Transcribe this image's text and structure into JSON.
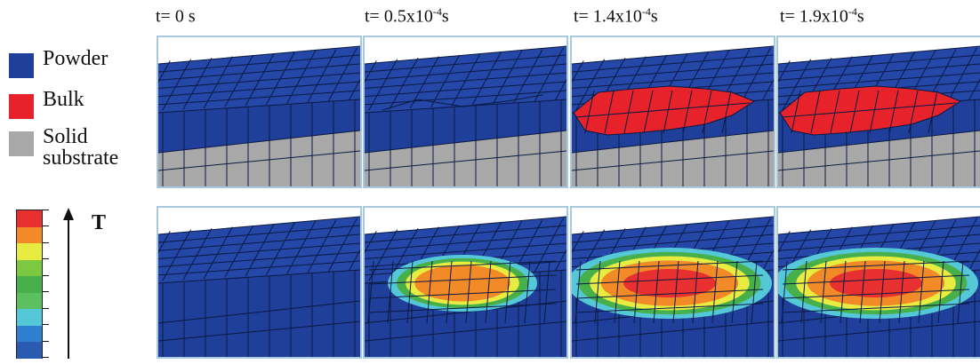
{
  "time_labels": [
    {
      "prefix": "t= 0 s",
      "exp": "",
      "suffix": ""
    },
    {
      "prefix": "t= 0.5x10",
      "exp": "-4",
      "suffix": "s"
    },
    {
      "prefix": "t= 1.4x10",
      "exp": "-4",
      "suffix": "s"
    },
    {
      "prefix": "t= 1.9x10",
      "exp": "-4",
      "suffix": "s"
    }
  ],
  "legend": [
    {
      "label_line1": "Powder",
      "label_line2": "",
      "color": "#1f3f9a"
    },
    {
      "label_line1": "Bulk",
      "label_line2": "",
      "color": "#e8222a"
    },
    {
      "label_line1": "Solid",
      "label_line2": "substrate",
      "color": "#a8a8a8"
    }
  ],
  "temperature_axis_label": "T",
  "colorbar_colors": [
    "#2a5bb0",
    "#2f7fd0",
    "#55c8d8",
    "#5cc060",
    "#48b04a",
    "#7cc840",
    "#e8ec40",
    "#f28a28",
    "#e83030"
  ],
  "colors": {
    "powder": "#1f3f9a",
    "powder_top": "#2447a8",
    "bulk": "#e8222a",
    "substrate": "#a8a8a8",
    "mesh": "#0b1a40",
    "panel_border": "#a8c8e0"
  }
}
